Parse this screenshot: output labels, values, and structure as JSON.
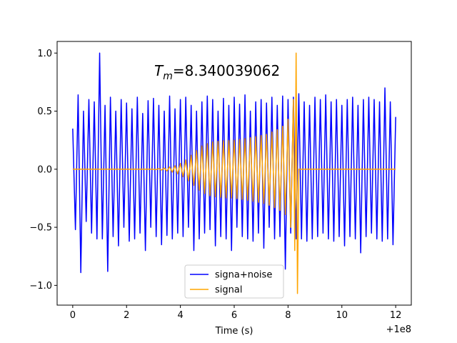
{
  "chart_data": {
    "type": "line",
    "annotation": {
      "symbol": "T",
      "subscript": "m",
      "text": "=8.340039062"
    },
    "xlabel": "Time (s)",
    "x_offset_label": "+1e8",
    "xlim": [
      -0.58,
      12.58
    ],
    "xticks": [
      0,
      2,
      4,
      6,
      8,
      10,
      12
    ],
    "ylim": [
      -1.17,
      1.1
    ],
    "yticks": [
      {
        "value": -1,
        "label": "−1.0"
      },
      {
        "value": -0.5,
        "label": "−0.5"
      },
      {
        "value": 0,
        "label": "0.0"
      },
      {
        "value": 0.5,
        "label": "0.5"
      },
      {
        "value": 1,
        "label": "1.0"
      }
    ],
    "legend": "lower center",
    "series": [
      {
        "name": "signa+noise",
        "color": "#0000ff",
        "x": [
          0,
          0.1,
          0.2,
          0.3,
          0.4,
          0.5,
          0.6,
          0.7,
          0.8,
          0.9,
          1,
          1.1,
          1.2,
          1.3,
          1.4,
          1.5,
          1.6,
          1.7,
          1.8,
          1.9,
          2,
          2.1,
          2.2,
          2.3,
          2.4,
          2.5,
          2.6,
          2.7,
          2.8,
          2.9,
          3,
          3.1,
          3.2,
          3.3,
          3.4,
          3.5,
          3.6,
          3.7,
          3.8,
          3.9,
          4,
          4.1,
          4.2,
          4.3,
          4.4,
          4.5,
          4.6,
          4.7,
          4.8,
          4.9,
          5,
          5.1,
          5.2,
          5.3,
          5.4,
          5.5,
          5.6,
          5.7,
          5.8,
          5.9,
          6,
          6.1,
          6.2,
          6.3,
          6.4,
          6.5,
          6.6,
          6.7,
          6.8,
          6.9,
          7,
          7.1,
          7.2,
          7.3,
          7.4,
          7.5,
          7.6,
          7.7,
          7.8,
          7.9,
          8,
          8.1,
          8.2,
          8.3,
          8.4,
          8.5,
          8.6,
          8.7,
          8.8,
          8.9,
          9,
          9.1,
          9.2,
          9.3,
          9.4,
          9.5,
          9.6,
          9.7,
          9.8,
          9.9,
          10,
          10.1,
          10.2,
          10.3,
          10.4,
          10.5,
          10.6,
          10.7,
          10.8,
          10.9,
          11,
          11.1,
          11.2,
          11.3,
          11.4,
          11.5,
          11.6,
          11.7,
          11.8,
          11.9,
          12
        ],
        "values": [
          0.35,
          -0.52,
          0.64,
          -0.89,
          0.5,
          -0.45,
          0.6,
          -0.55,
          0.58,
          -0.6,
          1.0,
          -0.6,
          0.55,
          -0.88,
          0.62,
          -0.58,
          0.5,
          -0.66,
          0.6,
          -0.5,
          0.57,
          -0.62,
          0.52,
          -0.6,
          0.62,
          -0.55,
          0.48,
          -0.7,
          0.59,
          -0.5,
          0.61,
          -0.58,
          0.55,
          -0.65,
          0.5,
          -0.57,
          0.63,
          -0.6,
          0.52,
          -0.55,
          0.6,
          -0.58,
          0.62,
          -0.5,
          0.55,
          -0.7,
          0.5,
          -0.6,
          0.58,
          -0.55,
          0.63,
          -0.52,
          0.6,
          -0.66,
          0.5,
          -0.58,
          0.61,
          -0.6,
          0.55,
          -0.7,
          0.62,
          -0.5,
          0.56,
          -0.58,
          0.64,
          -0.6,
          0.5,
          -0.62,
          0.58,
          -0.55,
          0.6,
          -0.68,
          0.57,
          -0.5,
          0.62,
          -0.6,
          0.55,
          -0.58,
          0.63,
          -0.86,
          0.6,
          -0.55,
          0.62,
          -0.6,
          0.65,
          -0.6,
          0.58,
          -0.62,
          0.55,
          -0.6,
          0.62,
          -0.58,
          0.6,
          -0.55,
          0.64,
          -0.6,
          0.58,
          -0.62,
          0.6,
          -0.58,
          0.55,
          -0.66,
          0.6,
          -0.58,
          0.62,
          -0.6,
          0.55,
          -0.72,
          0.6,
          -0.58,
          0.62,
          -0.55,
          0.6,
          -0.6,
          0.58,
          -0.62,
          0.7,
          -0.6,
          0.58,
          -0.65,
          0.45
        ]
      },
      {
        "name": "signal",
        "color": "#ffa500",
        "x": [
          0,
          3,
          3.1,
          3.2,
          3.3,
          3.4,
          3.5,
          3.6,
          3.7,
          3.8,
          3.9,
          4,
          4.1,
          4.2,
          4.3,
          4.4,
          4.5,
          4.6,
          4.7,
          4.8,
          4.9,
          5,
          5.1,
          5.2,
          5.3,
          5.4,
          5.5,
          5.6,
          5.7,
          5.8,
          5.9,
          6,
          6.1,
          6.2,
          6.3,
          6.4,
          6.5,
          6.6,
          6.7,
          6.8,
          6.9,
          7,
          7.1,
          7.2,
          7.3,
          7.4,
          7.5,
          7.6,
          7.7,
          7.8,
          7.9,
          8,
          8.1,
          8.2,
          8.25,
          8.3,
          8.35,
          8.4,
          12
        ],
        "values": [
          0,
          0,
          -0.003,
          0.005,
          -0.007,
          0.01,
          -0.015,
          0.02,
          -0.025,
          0.03,
          -0.04,
          0.05,
          -0.065,
          0.08,
          -0.1,
          0.12,
          -0.14,
          0.16,
          -0.18,
          0.2,
          -0.21,
          0.22,
          -0.228,
          0.235,
          -0.238,
          0.24,
          -0.242,
          0.245,
          -0.246,
          0.247,
          -0.248,
          0.25,
          -0.253,
          0.256,
          -0.26,
          0.264,
          -0.268,
          0.272,
          -0.276,
          0.28,
          -0.285,
          0.29,
          -0.295,
          0.3,
          -0.31,
          0.32,
          -0.33,
          0.34,
          -0.355,
          0.37,
          -0.39,
          0.43,
          -0.5,
          0.6,
          -0.7,
          1.0,
          -1.07,
          0,
          0
        ]
      }
    ]
  }
}
